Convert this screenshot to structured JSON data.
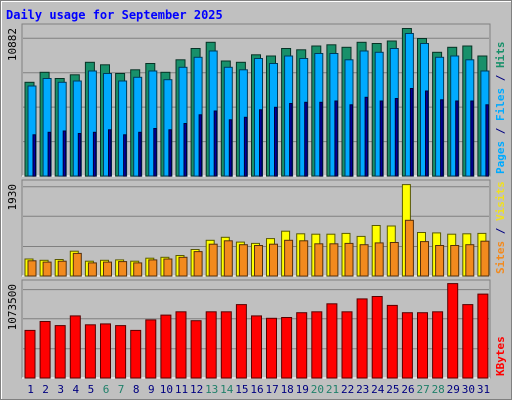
{
  "chart_data": {
    "type": "bar",
    "title": "Daily usage for September 2025",
    "categories": [
      "1",
      "2",
      "3",
      "4",
      "5",
      "6",
      "7",
      "8",
      "9",
      "10",
      "11",
      "12",
      "13",
      "14",
      "15",
      "16",
      "17",
      "18",
      "19",
      "20",
      "21",
      "22",
      "23",
      "24",
      "25",
      "26",
      "27",
      "28",
      "29",
      "30",
      "31"
    ],
    "weekend_days": [
      "6",
      "7",
      "13",
      "14",
      "20",
      "21",
      "27",
      "28"
    ],
    "panels": [
      {
        "id": "hits",
        "scale_label": "10882",
        "ylim": [
          0,
          12000
        ],
        "side_label_parts": [
          {
            "text": "Pages",
            "color": "#00aaff"
          },
          {
            "text": " / ",
            "color": "#000080"
          },
          {
            "text": "Files",
            "color": "#00aaff"
          },
          {
            "text": " / ",
            "color": "#000080"
          },
          {
            "text": "Hits",
            "color": "#18906a"
          }
        ],
        "series": [
          {
            "name": "Hits",
            "color": "#18906a",
            "values": [
              7500,
              8300,
              7800,
              8100,
              9100,
              8900,
              8200,
              8500,
              9000,
              8300,
              9300,
              10200,
              10700,
              9200,
              9100,
              9700,
              9600,
              10200,
              10100,
              10400,
              10500,
              10300,
              10700,
              10600,
              10800,
              11800,
              11000,
              9900,
              10300,
              10400,
              9600
            ]
          },
          {
            "name": "Files",
            "color": "#00aaff",
            "values": [
              7200,
              7800,
              7500,
              7600,
              8400,
              8200,
              7600,
              7900,
              8400,
              7700,
              8700,
              9500,
              10000,
              8700,
              8500,
              9400,
              9000,
              9600,
              9400,
              9800,
              9800,
              9300,
              10000,
              9900,
              10200,
              11400,
              10600,
              9500,
              9600,
              9300,
              8400
            ]
          },
          {
            "name": "Pages",
            "color": "#0000a0",
            "values": [
              3300,
              3500,
              3600,
              3400,
              3500,
              3700,
              3300,
              3500,
              3800,
              3700,
              4200,
              4900,
              5200,
              4500,
              4700,
              5300,
              5500,
              5800,
              5900,
              5900,
              6000,
              5700,
              6300,
              6000,
              6200,
              7000,
              6800,
              6100,
              6000,
              6000,
              5700
            ]
          }
        ]
      },
      {
        "id": "visits",
        "scale_label": "1930",
        "ylim": [
          0,
          2160
        ],
        "side_label_parts": [
          {
            "text": "Sites",
            "color": "#f28a1e"
          },
          {
            "text": " / ",
            "color": "#000080"
          },
          {
            "text": "Visits",
            "color": "#f0e020"
          }
        ],
        "series": [
          {
            "name": "Visits",
            "color": "#ffff00",
            "values": [
              390,
              360,
              380,
              570,
              340,
              360,
              370,
              340,
              410,
              430,
              470,
              610,
              820,
              890,
              780,
              750,
              860,
              1030,
              970,
              960,
              960,
              980,
              910,
              1160,
              1150,
              2100,
              1000,
              990,
              960,
              970,
              980
            ]
          },
          {
            "name": "Sites",
            "color": "#f28a1e",
            "values": [
              350,
              320,
              340,
              520,
              300,
              320,
              330,
              300,
              370,
              390,
              430,
              560,
              730,
              810,
              720,
              700,
              730,
              820,
              810,
              740,
              740,
              750,
              720,
              760,
              770,
              1280,
              790,
              700,
              700,
              720,
              800
            ]
          }
        ]
      },
      {
        "id": "kbytes",
        "scale_label": "1073500",
        "ylim": [
          0,
          1190000
        ],
        "side_label_parts": [
          {
            "text": "KBytes",
            "color": "#ff0000"
          }
        ],
        "series": [
          {
            "name": "KBytes",
            "color": "#ff0000",
            "values": [
              590000,
              700000,
              650000,
              770000,
              660000,
              670000,
              650000,
              590000,
              720000,
              780000,
              820000,
              710000,
              820000,
              820000,
              910000,
              770000,
              740000,
              750000,
              810000,
              820000,
              920000,
              820000,
              980000,
              1010000,
              900000,
              810000,
              810000,
              820000,
              1170000,
              910000,
              1040000
            ]
          }
        ]
      }
    ],
    "grid": true
  },
  "colors": {
    "frame_bg": "#c0c0c0",
    "plot_bg": "#c0c0c0",
    "title": "#0000ff",
    "day_label": "#000080",
    "weekend_label": "#20806a",
    "grid": "#808080"
  }
}
